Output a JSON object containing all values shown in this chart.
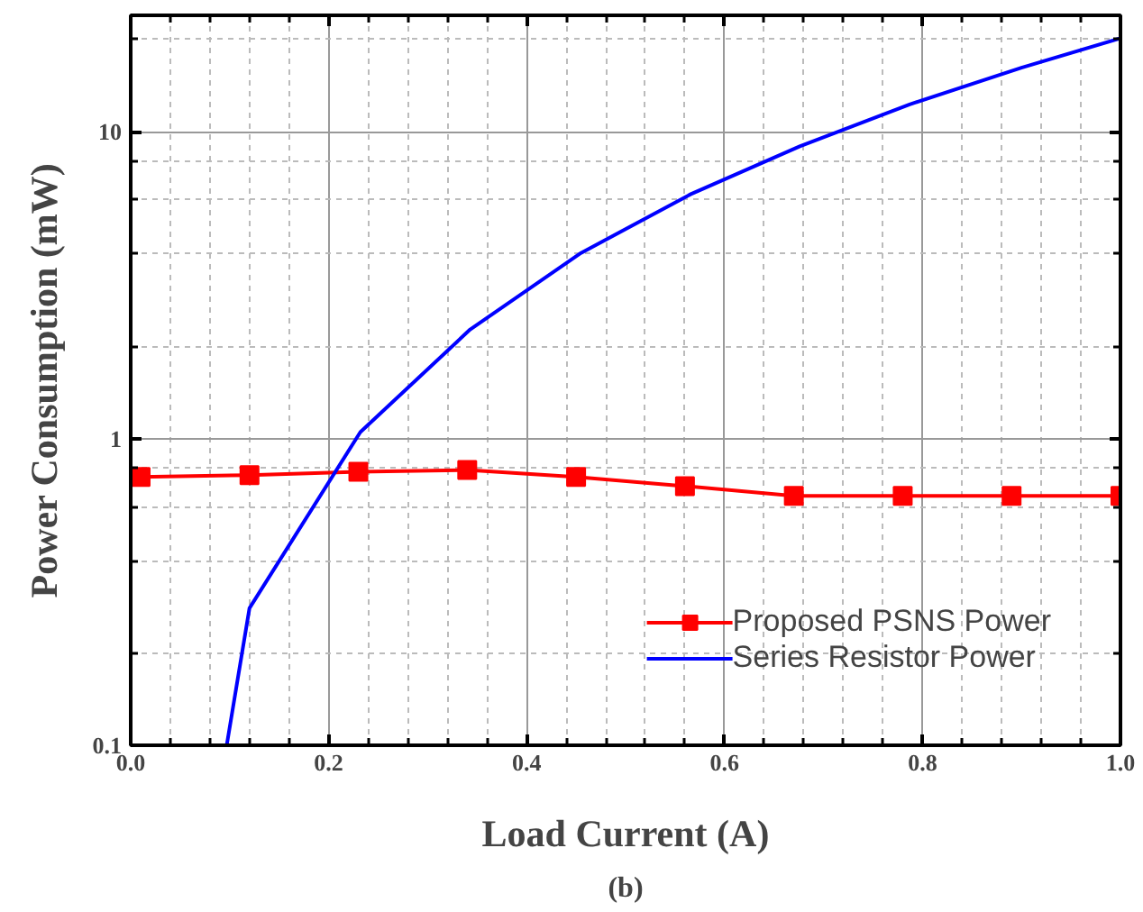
{
  "chart_data": {
    "type": "line",
    "xlabel": "Load Current (A)",
    "ylabel": "Power Consumption (mW)",
    "annotations": [
      "(b)"
    ],
    "log": "y",
    "grid": true,
    "legend": "bottom right",
    "xlim": [
      0,
      1
    ],
    "ylim": [
      0.1,
      24
    ],
    "xticks": [
      {
        "value": 0,
        "label": "0.0"
      },
      {
        "value": 0.04,
        "label": null
      },
      {
        "value": 0.08,
        "label": null
      },
      {
        "value": 0.12,
        "label": null
      },
      {
        "value": 0.16,
        "label": null
      },
      0.2,
      {
        "value": 0.24,
        "label": null
      },
      {
        "value": 0.28,
        "label": null
      },
      {
        "value": 0.32,
        "label": null
      },
      {
        "value": 0.36,
        "label": null
      },
      0.4,
      {
        "value": 0.44,
        "label": null
      },
      {
        "value": 0.48,
        "label": null
      },
      {
        "value": 0.52,
        "label": null
      },
      {
        "value": 0.56,
        "label": null
      },
      0.6,
      {
        "value": 0.64,
        "label": null
      },
      {
        "value": 0.68,
        "label": null
      },
      {
        "value": 0.72,
        "label": null
      },
      {
        "value": 0.76,
        "label": null
      },
      0.8,
      {
        "value": 0.84,
        "label": null
      },
      {
        "value": 0.88,
        "label": null
      },
      {
        "value": 0.92,
        "label": null
      },
      {
        "value": 0.96,
        "label": null
      },
      {
        "value": 1,
        "label": "1.0"
      }
    ],
    "yticks": [
      0.1,
      {
        "value": 0.2,
        "label": null
      },
      {
        "value": 0.4,
        "label": null
      },
      {
        "value": 0.6,
        "label": null
      },
      {
        "value": 0.8,
        "label": null
      },
      1,
      {
        "value": 2,
        "label": null
      },
      {
        "value": 4,
        "label": null
      },
      {
        "value": 6,
        "label": null
      },
      {
        "value": 8,
        "label": null
      },
      10,
      {
        "value": 20,
        "label": null
      }
    ],
    "series": [
      {
        "name": "Proposed PSNS Power",
        "color": "#ff0000",
        "marker": "square",
        "x": [
          0.01,
          0.12,
          0.23,
          0.34,
          0.45,
          0.56,
          0.67,
          0.78,
          0.89,
          1.0
        ],
        "values": [
          0.75,
          0.76,
          0.78,
          0.79,
          0.75,
          0.7,
          0.65,
          0.65,
          0.65,
          0.65
        ]
      },
      {
        "name": "Series Resistor Power",
        "color": "#0000ff",
        "marker": "none",
        "x": [
          0.097,
          0.12,
          0.232,
          0.343,
          0.455,
          0.566,
          0.676,
          0.787,
          0.9,
          1.0
        ],
        "values": [
          0.1,
          0.28,
          1.05,
          2.27,
          4.03,
          6.27,
          8.97,
          12.3,
          16.2,
          20.2
        ]
      }
    ]
  }
}
